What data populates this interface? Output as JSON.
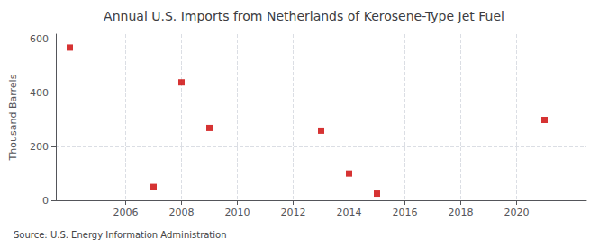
{
  "chart_data": {
    "type": "scatter",
    "title": "Annual U.S. Imports from Netherlands of Kerosene-Type Jet Fuel",
    "ylabel": "Thousand Barrels",
    "source": "Source: U.S. Energy Information Administration",
    "x": [
      2004,
      2007,
      2008,
      2009,
      2013,
      2014,
      2015,
      2021
    ],
    "values": [
      570,
      50,
      440,
      270,
      260,
      100,
      25,
      300
    ],
    "color": "#cc0000",
    "marker": "square",
    "xlim": [
      2003.5,
      2022.5
    ],
    "ylim": [
      0,
      620
    ],
    "xticks": [
      2006,
      2008,
      2010,
      2012,
      2014,
      2016,
      2018,
      2020
    ],
    "yticks": [
      0,
      200,
      400,
      600
    ],
    "grid": true
  }
}
